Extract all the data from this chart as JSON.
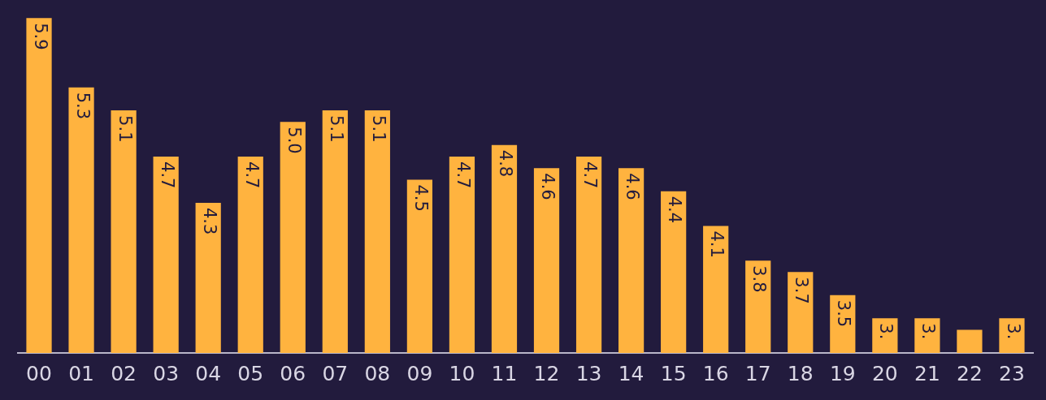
{
  "chart_data": {
    "type": "bar",
    "categories": [
      "00",
      "01",
      "02",
      "03",
      "04",
      "05",
      "06",
      "07",
      "08",
      "09",
      "10",
      "11",
      "12",
      "13",
      "14",
      "15",
      "16",
      "17",
      "18",
      "19",
      "20",
      "21",
      "22",
      "23"
    ],
    "values": [
      5.9,
      5.3,
      5.1,
      4.7,
      4.3,
      4.7,
      5.0,
      5.1,
      5.1,
      4.5,
      4.7,
      4.8,
      4.6,
      4.7,
      4.6,
      4.4,
      4.1,
      3.8,
      3.7,
      3.5,
      3.3,
      3.3,
      3.2,
      3.3
    ],
    "value_labels": [
      "5.9",
      "5.3",
      "5.1",
      "4.7",
      "4.3",
      "4.7",
      "5.0",
      "5.1",
      "5.1",
      "4.5",
      "4.7",
      "4.8",
      "4.6",
      "4.7",
      "4.6",
      "4.4",
      "4.1",
      "3.8",
      "3.7",
      "3.5",
      "3.",
      "3.",
      null,
      "3."
    ],
    "color": "#ffb33f",
    "grid": false,
    "legend": false
  }
}
